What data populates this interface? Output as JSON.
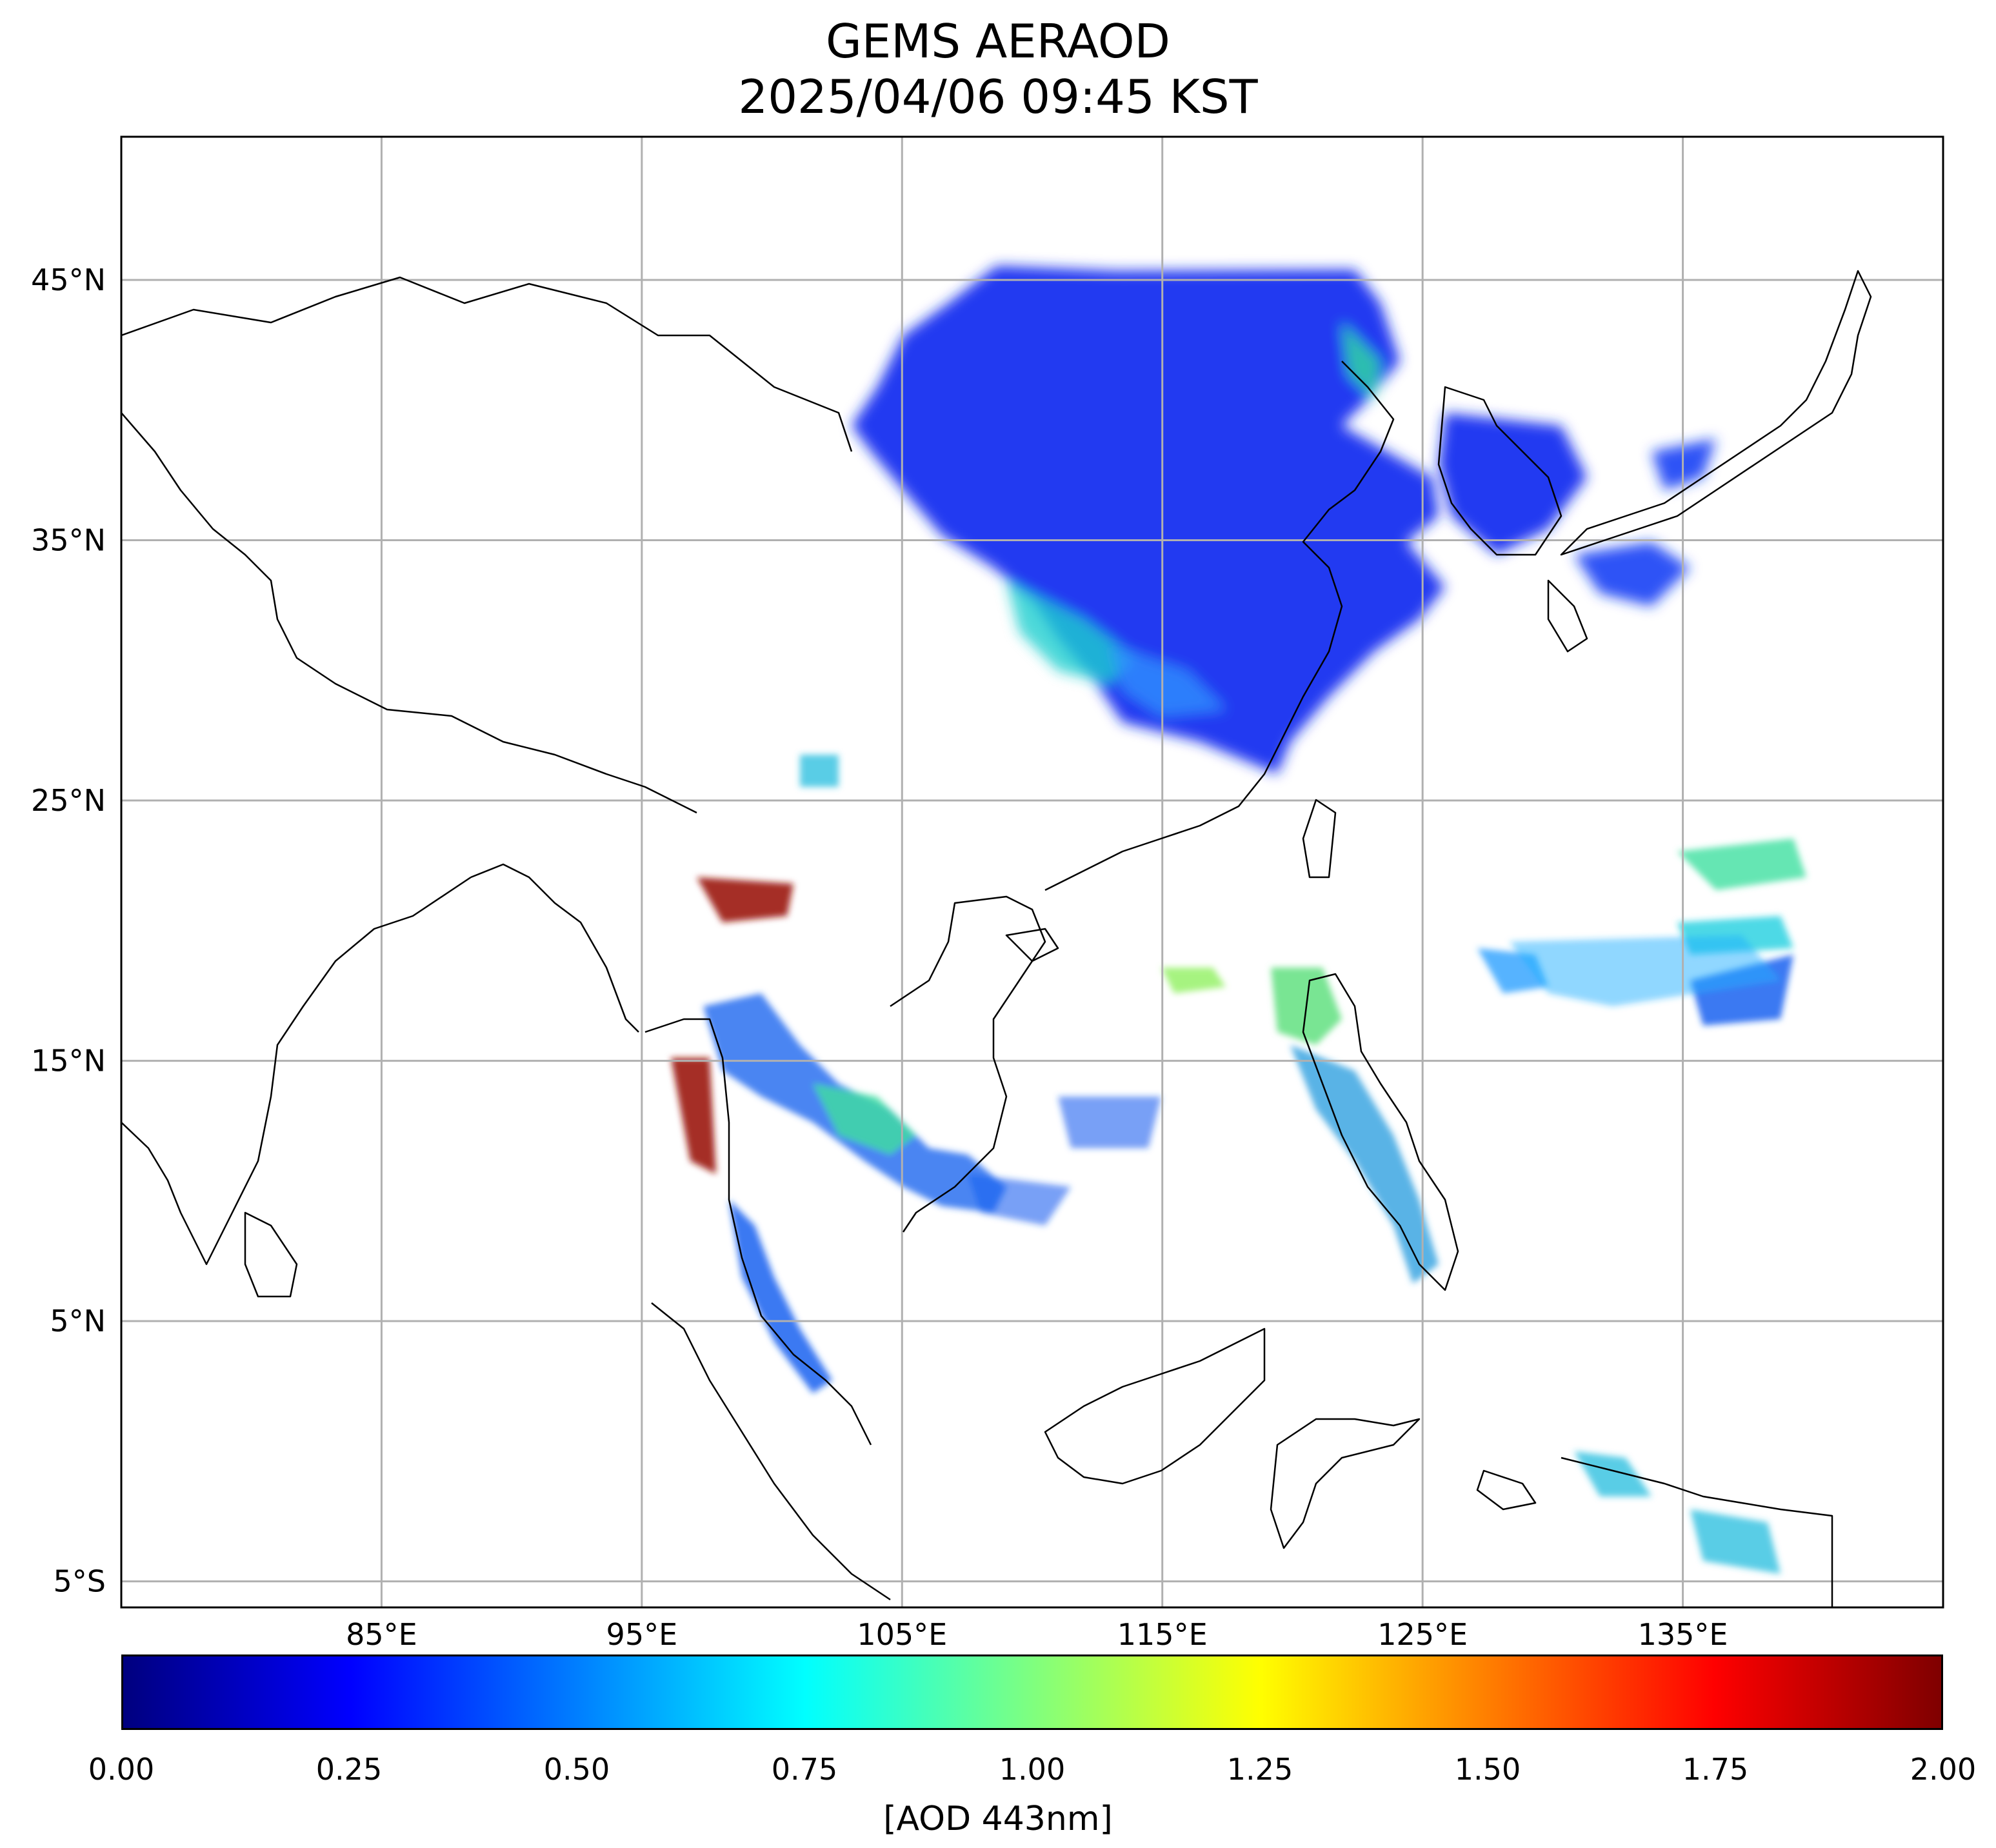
{
  "title": {
    "line1": "GEMS AERAOD",
    "line2": "2025/04/06 09:45 KST"
  },
  "map": {
    "lon_range": [
      75,
      145
    ],
    "lat_range": [
      -6,
      50.5
    ],
    "lon_ticks": [
      {
        "value": 85,
        "label": "85°E"
      },
      {
        "value": 95,
        "label": "95°E"
      },
      {
        "value": 105,
        "label": "105°E"
      },
      {
        "value": 115,
        "label": "115°E"
      },
      {
        "value": 125,
        "label": "125°E"
      },
      {
        "value": 135,
        "label": "135°E"
      }
    ],
    "lat_ticks": [
      {
        "value": 45,
        "label": "45°N"
      },
      {
        "value": 35,
        "label": "35°N"
      },
      {
        "value": 25,
        "label": "25°N"
      },
      {
        "value": 15,
        "label": "15°N"
      },
      {
        "value": 5,
        "label": "5°N"
      },
      {
        "value": -5,
        "label": "5°S"
      }
    ],
    "grid": true,
    "grid_color": "#b0b0b0"
  },
  "colorbar": {
    "colormap": "jet",
    "range": [
      0,
      2
    ],
    "ticks": [
      "0.00",
      "0.25",
      "0.50",
      "0.75",
      "1.00",
      "1.25",
      "1.50",
      "1.75",
      "2.00"
    ],
    "label": "[AOD 443nm]"
  }
}
